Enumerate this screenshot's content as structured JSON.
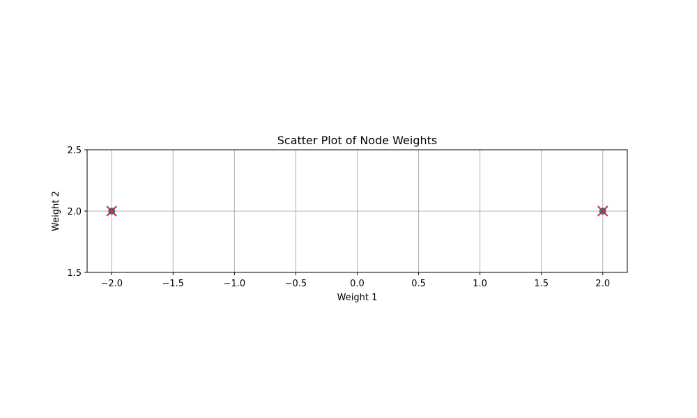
{
  "chart_data": {
    "type": "scatter",
    "title": "Scatter Plot of Node Weights",
    "xlabel": "Weight 1",
    "ylabel": "Weight 2",
    "xlim": [
      -2.2,
      2.2
    ],
    "ylim": [
      1.5,
      2.5
    ],
    "xticks": [
      -2.0,
      -1.5,
      -1.0,
      -0.5,
      0.0,
      0.5,
      1.0,
      1.5,
      2.0
    ],
    "xtick_labels": [
      "−2.0",
      "−1.5",
      "−1.0",
      "−0.5",
      "0.0",
      "0.5",
      "1.0",
      "1.5",
      "2.0"
    ],
    "yticks": [
      1.5,
      2.0,
      2.5
    ],
    "ytick_labels": [
      "1.5",
      "2.0",
      "2.5"
    ],
    "grid": true,
    "legend": "none",
    "series": [
      {
        "marker": "circle",
        "color": "#1f77b4",
        "points": [
          {
            "x": -2.0,
            "y": 2.0
          },
          {
            "x": 2.0,
            "y": 2.0
          }
        ]
      },
      {
        "marker": "x",
        "color": "#d62728",
        "points": [
          {
            "x": -2.0,
            "y": 2.0
          },
          {
            "x": 2.0,
            "y": 2.0
          }
        ]
      }
    ]
  }
}
